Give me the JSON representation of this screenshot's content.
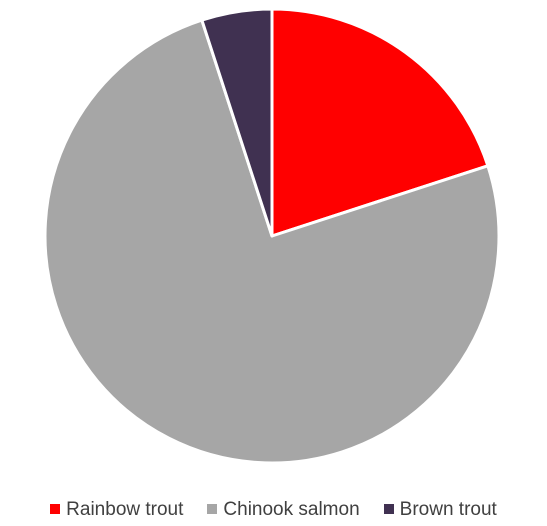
{
  "chart_data": {
    "type": "pie",
    "title": "",
    "categories": [
      "Rainbow trout",
      "Chinook salmon",
      "Brown trout"
    ],
    "values": [
      20,
      75,
      5
    ],
    "colors": [
      "#ff0000",
      "#a6a6a6",
      "#403151"
    ],
    "start_angle_deg": 0,
    "direction": "clockwise",
    "legend_position": "bottom",
    "slice_border_color": "#ffffff"
  }
}
